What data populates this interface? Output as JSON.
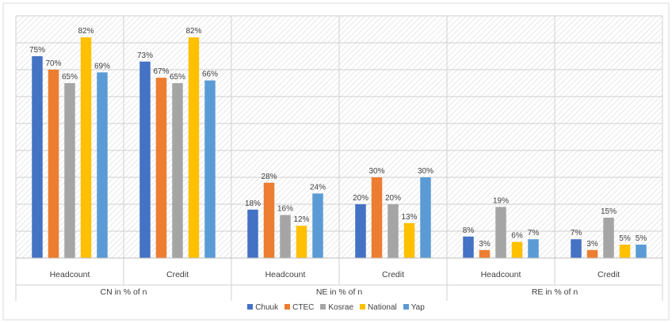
{
  "chart_data": {
    "type": "bar",
    "ylim": [
      0,
      90
    ],
    "series": [
      {
        "name": "Chuuk",
        "color": "#4472C4"
      },
      {
        "name": "CTEC",
        "color": "#ED7D31"
      },
      {
        "name": "Kosrae",
        "color": "#A5A5A5"
      },
      {
        "name": "National",
        "color": "#FFC000"
      },
      {
        "name": "Yap",
        "color": "#5B9BD5"
      }
    ],
    "groups": [
      {
        "label": "CN in % of n",
        "categories": [
          {
            "label": "Headcount",
            "values": [
              75,
              70,
              65,
              82,
              69
            ],
            "labels": [
              "75%",
              "70%",
              "65%",
              "82%",
              "69%"
            ]
          },
          {
            "label": "Credit",
            "values": [
              73,
              67,
              65,
              82,
              66
            ],
            "labels": [
              "73%",
              "67%",
              "65%",
              "82%",
              "66%"
            ]
          }
        ]
      },
      {
        "label": "NE in % of n",
        "categories": [
          {
            "label": "Headcount",
            "values": [
              18,
              28,
              16,
              12,
              24
            ],
            "labels": [
              "18%",
              "28%",
              "16%",
              "12%",
              "24%"
            ]
          },
          {
            "label": "Credit",
            "values": [
              20,
              30,
              20,
              13,
              30
            ],
            "labels": [
              "20%",
              "30%",
              "20%",
              "13%",
              "30%"
            ]
          }
        ]
      },
      {
        "label": "RE in % of n",
        "categories": [
          {
            "label": "Headcount",
            "values": [
              8,
              3,
              19,
              6,
              7
            ],
            "labels": [
              "8%",
              "3%",
              "19%",
              "6%",
              "7%"
            ]
          },
          {
            "label": "Credit",
            "values": [
              7,
              3,
              15,
              5,
              5
            ],
            "labels": [
              "7%",
              "3%",
              "15%",
              "5%",
              "5%"
            ]
          }
        ]
      }
    ]
  }
}
